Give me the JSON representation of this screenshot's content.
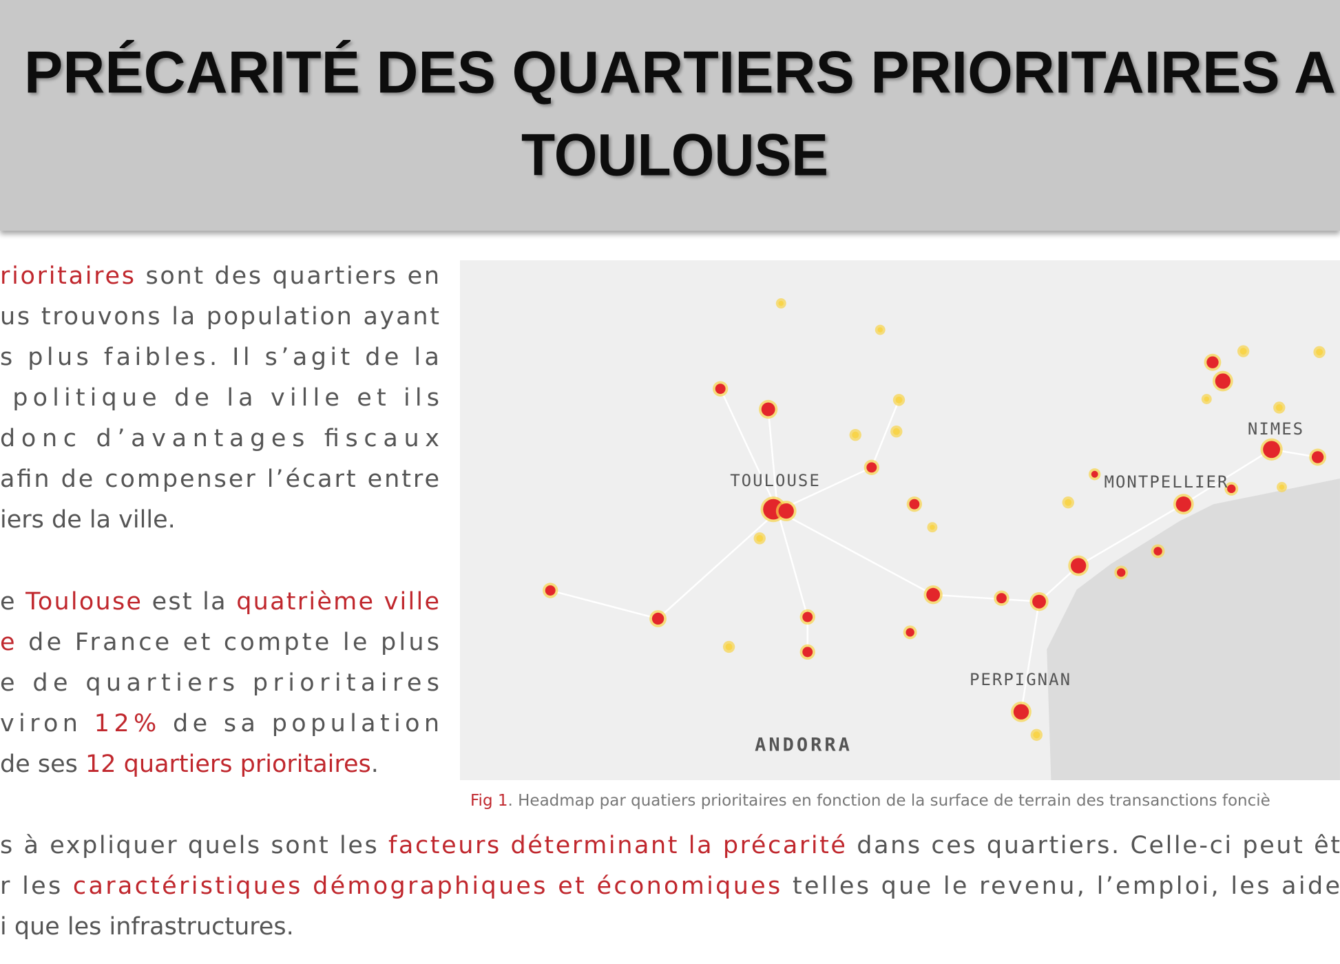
{
  "header": {
    "title_lines": [
      "PRÉCARITÉ DES QUARTIERS PRIORITAIRES A",
      "TOULOUSE"
    ]
  },
  "paragraphs": [
    {
      "lines": [
        [
          {
            "text": "rioritaires",
            "color": "#c0272d"
          },
          " sont des quartiers en"
        ],
        [
          "us trouvons la population ayant"
        ],
        [
          "s plus faibles. Il s’agit de la"
        ],
        [
          " politique de la ville et ils"
        ],
        [
          "donc d’avantages fiscaux"
        ],
        [
          "afin de compenser l’écart entre"
        ],
        [
          "iers de la ville."
        ]
      ]
    },
    {
      "lines": [
        [
          "e ",
          {
            "text": "Toulouse",
            "color": "#c0272d"
          },
          " est la ",
          {
            "text": "quatrième ville",
            "color": "#c0272d"
          }
        ],
        [
          {
            "text": "e",
            "color": "#c0272d"
          },
          " de France et compte le plus"
        ],
        [
          "e de quartiers prioritaires"
        ],
        [
          "viron ",
          {
            "text": "12%",
            "color": "#c0272d"
          },
          " de sa population"
        ],
        [
          "de ses ",
          {
            "text": "12 quartiers prioritaires",
            "color": "#c0272d"
          },
          "."
        ]
      ]
    },
    {
      "lines": [
        [
          "s à expliquer quels sont les ",
          {
            "text": "facteurs déterminant la précarité",
            "color": "#c0272d"
          },
          " dans ces quartiers. Celle-ci peut êt"
        ],
        [
          "r les ",
          {
            "text": "caractéristiques démographiques et économiques",
            "color": "#c0272d"
          },
          " telles que le revenu, l’emploi, les aide"
        ],
        [
          "i que les infrastructures."
        ]
      ]
    }
  ],
  "figure": {
    "map_labels": [
      "TOULOUSE",
      "MONTPELLIER",
      "NIMES",
      "PERPIGNAN",
      "ANDORRA"
    ],
    "caption": [
      {
        "text": "Fig 1",
        "color": "#c0272d"
      },
      ". Headmap par quatiers prioritaires en fonction de la surface de terrain des transanctions fonciè"
    ]
  }
}
